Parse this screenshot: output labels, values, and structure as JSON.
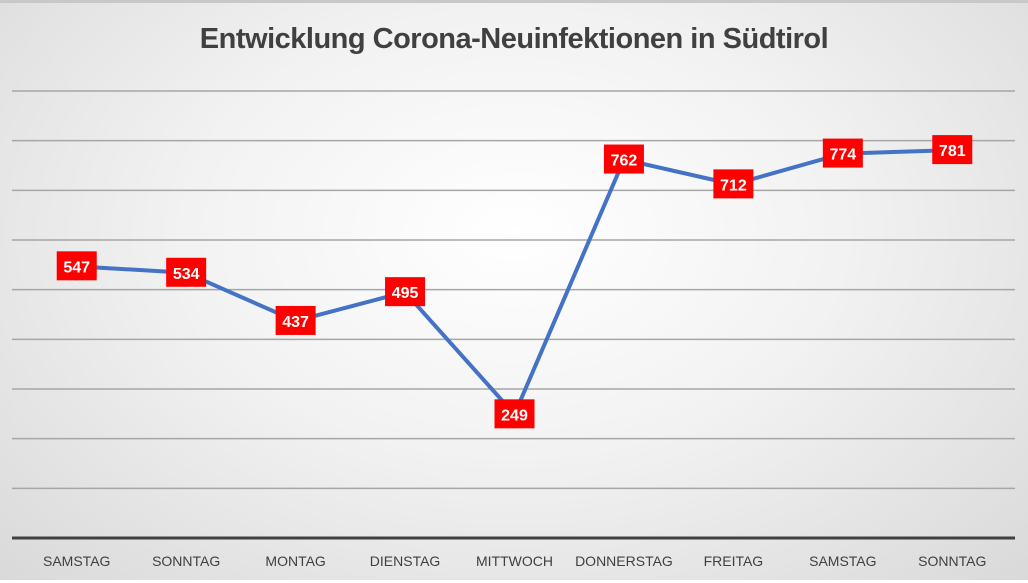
{
  "chart_data": {
    "type": "line",
    "title": "Entwicklung Corona-Neuinfektionen in Südtirol",
    "categories": [
      "SAMSTAG",
      "SONNTAG",
      "MONTAG",
      "DIENSTAG",
      "MITTWOCH",
      "DONNERSTAG",
      "FREITAG",
      "SAMSTAG",
      "SONNTAG"
    ],
    "series": [
      {
        "name": "Neuinfektionen",
        "values": [
          547,
          534,
          437,
          495,
          249,
          762,
          712,
          774,
          781
        ]
      }
    ],
    "data_labels": [
      "547",
      "534",
      "437",
      "495",
      "249",
      "762",
      "712",
      "774",
      "781"
    ],
    "xlabel": "",
    "ylabel": "",
    "ylim": [
      0,
      900
    ],
    "grid_step": 100,
    "grid": true,
    "legend": "none",
    "colors": {
      "line": "#4472C4",
      "label_bg": "#FF0000",
      "label_text": "#FFFFFF",
      "grid": "#a6a6a6",
      "axis": "#404040"
    }
  }
}
